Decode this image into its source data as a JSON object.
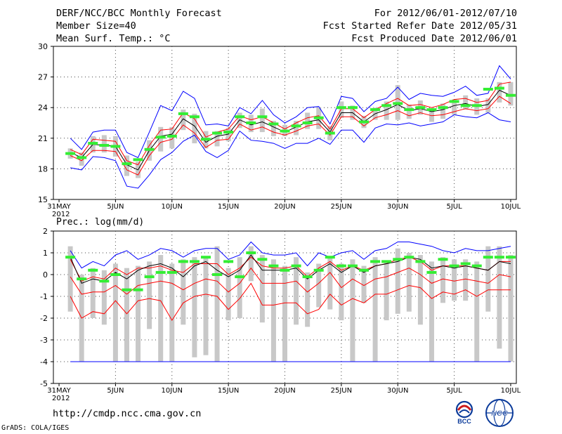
{
  "header": {
    "title": "DERF/NCC/BCC Monthly Forecast",
    "member_size": "Member Size=40",
    "variable": "Mean Surf. Temp.: °C",
    "forecast_period": "For 2012/06/01-2012/07/10",
    "start_refer": "Fcst Started Refer Date 2012/05/31",
    "produced": "Fcst Produced Date 2012/06/01"
  },
  "footer": {
    "url": "http://cmdp.ncc.cma.gov.cn",
    "credit": "GrADS: COLA/IGES",
    "logo_bcc": "BCC",
    "logo_ncc": "NCC"
  },
  "colors": {
    "max_min": "#0000ff",
    "mean": "#000000",
    "spread": "#ff0000",
    "box": "#c8c8c8",
    "median": "#33ee33"
  },
  "chart_data": [
    {
      "type": "line",
      "title": "Mean Surf. Temp.: °C",
      "ylim": [
        15,
        30
      ],
      "yticks": [
        15,
        18,
        21,
        24,
        27,
        30
      ],
      "xticks": [
        {
          "day": 0,
          "label": "31MAY",
          "label2": "2012"
        },
        {
          "day": 5,
          "label": "5JUN"
        },
        {
          "day": 10,
          "label": "10JUN"
        },
        {
          "day": 15,
          "label": "15JUN"
        },
        {
          "day": 20,
          "label": "20JUN"
        },
        {
          "day": 25,
          "label": "25JUN"
        },
        {
          "day": 30,
          "label": "30JUN"
        },
        {
          "day": 35,
          "label": "5JUL"
        },
        {
          "day": 40,
          "label": "10JUL"
        }
      ],
      "x": [
        1,
        2,
        3,
        4,
        5,
        6,
        7,
        8,
        9,
        10,
        11,
        12,
        13,
        14,
        15,
        16,
        17,
        18,
        19,
        20,
        21,
        22,
        23,
        24,
        25,
        26,
        27,
        28,
        29,
        30,
        31,
        32,
        33,
        34,
        35,
        36,
        37,
        38,
        39,
        40
      ],
      "series": [
        {
          "name": "max",
          "values": [
            21.0,
            19.9,
            21.6,
            21.8,
            21.8,
            19.6,
            19.1,
            21.6,
            24.2,
            23.7,
            25.6,
            24.9,
            22.3,
            22.4,
            22.2,
            24.0,
            23.4,
            24.7,
            23.3,
            22.5,
            23.1,
            24.0,
            24.1,
            22.4,
            25.1,
            24.9,
            23.6,
            24.6,
            24.9,
            26.0,
            24.8,
            25.4,
            25.2,
            25.1,
            25.5,
            26.1,
            25.2,
            25.4,
            28.1,
            26.8
          ]
        },
        {
          "name": "min",
          "values": [
            18.1,
            17.9,
            19.2,
            19.1,
            18.8,
            16.3,
            16.1,
            17.4,
            18.9,
            19.6,
            20.7,
            21.3,
            19.7,
            19.1,
            19.8,
            21.7,
            20.8,
            20.7,
            20.5,
            20.0,
            20.5,
            20.5,
            21.0,
            20.4,
            21.8,
            21.8,
            20.6,
            22.0,
            22.4,
            22.3,
            22.5,
            22.2,
            22.4,
            22.6,
            23.3,
            23.1,
            23.0,
            23.5,
            22.8,
            22.6
          ]
        },
        {
          "name": "mean",
          "values": [
            19.6,
            19.1,
            20.4,
            20.3,
            20.2,
            18.4,
            17.9,
            19.8,
            21.2,
            21.4,
            22.9,
            22.2,
            20.6,
            21.2,
            21.4,
            22.8,
            22.3,
            22.6,
            22.1,
            21.6,
            22.1,
            22.6,
            22.8,
            21.6,
            23.5,
            23.5,
            22.6,
            23.4,
            23.8,
            24.3,
            23.7,
            23.9,
            23.6,
            23.8,
            24.2,
            24.4,
            24.1,
            24.3,
            25.7,
            25.2
          ]
        },
        {
          "name": "mean_plus_sd",
          "values": [
            19.9,
            19.4,
            20.9,
            20.8,
            20.7,
            18.8,
            18.4,
            20.3,
            21.8,
            21.9,
            23.5,
            22.9,
            21.1,
            21.6,
            21.9,
            23.2,
            22.8,
            23.1,
            22.5,
            21.9,
            22.5,
            23.0,
            23.2,
            21.9,
            23.9,
            23.9,
            23.0,
            23.8,
            24.4,
            24.9,
            24.2,
            24.3,
            24.0,
            24.3,
            24.8,
            24.9,
            24.5,
            24.7,
            26.3,
            26.5
          ]
        },
        {
          "name": "mean_minus_sd",
          "values": [
            19.3,
            18.8,
            19.8,
            19.8,
            19.7,
            17.9,
            17.4,
            19.3,
            20.6,
            20.9,
            22.3,
            21.5,
            20.1,
            20.8,
            20.9,
            22.4,
            21.8,
            22.1,
            21.6,
            21.3,
            21.7,
            22.2,
            22.4,
            21.3,
            23.1,
            23.1,
            22.2,
            23.0,
            23.3,
            23.7,
            23.2,
            23.5,
            23.2,
            23.3,
            23.6,
            23.9,
            23.7,
            23.9,
            25.1,
            24.4
          ]
        },
        {
          "name": "box_top",
          "values": [
            20.0,
            19.6,
            21.2,
            21.3,
            21.2,
            19.3,
            18.7,
            20.8,
            22.1,
            22.1,
            23.8,
            23.4,
            21.7,
            21.7,
            22.0,
            23.5,
            23.3,
            23.9,
            22.7,
            22.3,
            22.7,
            23.5,
            24.0,
            22.2,
            24.6,
            24.2,
            23.2,
            24.0,
            24.6,
            26.2,
            24.3,
            24.7,
            23.7,
            24.4,
            24.8,
            25.2,
            24.9,
            24.9,
            26.5,
            26.5
          ]
        },
        {
          "name": "box_bottom",
          "values": [
            19.0,
            18.3,
            19.6,
            19.6,
            19.2,
            17.3,
            17.1,
            18.8,
            19.7,
            20.0,
            21.8,
            20.5,
            20.0,
            20.2,
            20.7,
            22.0,
            21.6,
            21.6,
            21.2,
            21.2,
            21.3,
            21.9,
            21.9,
            20.8,
            23.0,
            22.8,
            22.0,
            22.8,
            22.8,
            22.8,
            22.9,
            23.3,
            22.6,
            22.9,
            23.3,
            23.8,
            23.3,
            23.5,
            24.5,
            24.2
          ]
        },
        {
          "name": "median",
          "values": [
            19.5,
            19.1,
            20.5,
            20.3,
            20.2,
            18.5,
            18.9,
            19.9,
            21.1,
            21.2,
            23.4,
            23.1,
            20.9,
            21.5,
            21.6,
            23.1,
            22.5,
            23.1,
            22.4,
            21.7,
            22.2,
            22.5,
            23.0,
            21.5,
            24.0,
            24.0,
            22.6,
            23.8,
            24.2,
            24.4,
            23.8,
            24.0,
            23.8,
            24.0,
            24.6,
            24.2,
            24.2,
            25.8,
            25.9,
            25.2
          ]
        }
      ]
    },
    {
      "type": "line",
      "title": "Prec.: log(mm/d)",
      "ylim": [
        -5,
        2
      ],
      "yticks": [
        -5,
        -4,
        -3,
        -2,
        -1,
        0,
        1,
        2
      ],
      "xticks": [
        {
          "day": 0,
          "label": "31MAY",
          "label2": "2012"
        },
        {
          "day": 5,
          "label": "5JUN"
        },
        {
          "day": 10,
          "label": "10JUN"
        },
        {
          "day": 15,
          "label": "15JUN"
        },
        {
          "day": 20,
          "label": "20JUN"
        },
        {
          "day": 25,
          "label": "25JUN"
        },
        {
          "day": 30,
          "label": "30JUN"
        },
        {
          "day": 35,
          "label": "5JUL"
        },
        {
          "day": 40,
          "label": "10JUL"
        }
      ],
      "x": [
        1,
        2,
        3,
        4,
        5,
        6,
        7,
        8,
        9,
        10,
        11,
        12,
        13,
        14,
        15,
        16,
        17,
        18,
        19,
        20,
        21,
        22,
        23,
        24,
        25,
        26,
        27,
        28,
        29,
        30,
        31,
        32,
        33,
        34,
        35,
        36,
        37,
        38,
        39,
        40
      ],
      "series": [
        {
          "name": "max",
          "values": [
            1.1,
            0.3,
            0.6,
            0.4,
            0.9,
            1.1,
            0.7,
            0.9,
            1.2,
            1.1,
            0.8,
            1.1,
            1.2,
            1.2,
            0.7,
            0.9,
            1.5,
            1.0,
            0.9,
            0.9,
            1.0,
            0.4,
            1.0,
            0.8,
            1.0,
            1.1,
            0.7,
            1.1,
            1.2,
            1.5,
            1.5,
            1.4,
            1.3,
            1.1,
            1.0,
            1.2,
            1.1,
            1.1,
            1.2,
            1.3
          ]
        },
        {
          "name": "min",
          "values": [
            -4.0,
            -4.0,
            -4.0,
            -4.0,
            -4.0,
            -4.0,
            -4.0,
            -4.0,
            -4.0,
            -4.0,
            -4.0,
            -4.0,
            -4.0,
            -4.0,
            -4.0,
            -4.0,
            -4.0,
            -4.0,
            -4.0,
            -4.0,
            -4.0,
            -4.0,
            -4.0,
            -4.0,
            -4.0,
            -4.0,
            -4.0,
            -4.0,
            -4.0,
            -4.0,
            -4.0,
            -4.0,
            -4.0,
            -4.0,
            -4.0,
            -4.0,
            -4.0,
            -4.0,
            -4.0,
            -4.0
          ]
        },
        {
          "name": "mean",
          "values": [
            0.8,
            -0.4,
            -0.2,
            -0.3,
            0.1,
            -0.2,
            0.2,
            0.4,
            0.5,
            0.3,
            -0.1,
            0.4,
            0.6,
            0.2,
            -0.1,
            0.2,
            0.9,
            0.2,
            0.2,
            0.2,
            0.3,
            -0.2,
            0.2,
            0.5,
            0.1,
            0.4,
            0.1,
            0.4,
            0.5,
            0.6,
            0.8,
            0.7,
            0.3,
            0.4,
            0.3,
            0.4,
            0.3,
            0.2,
            0.6,
            0.5
          ]
        },
        {
          "name": "mean_plus_sd",
          "values": [
            0.7,
            -0.3,
            -0.1,
            -0.2,
            0.3,
            0.0,
            0.3,
            0.3,
            0.4,
            0.2,
            0.1,
            0.5,
            0.5,
            0.5,
            0.0,
            0.3,
            0.8,
            0.4,
            0.3,
            0.3,
            0.4,
            -0.1,
            0.3,
            0.6,
            0.2,
            0.4,
            0.2,
            0.4,
            0.5,
            0.7,
            0.8,
            0.6,
            0.2,
            0.4,
            0.4,
            0.4,
            0.3,
            0.2,
            0.6,
            0.6
          ]
        },
        {
          "name": "mean_minus_sd",
          "values": [
            -0.1,
            -0.9,
            -0.8,
            -0.8,
            -0.5,
            -0.9,
            -0.5,
            -0.4,
            -0.3,
            -0.4,
            -0.7,
            -0.4,
            -0.2,
            -0.3,
            -0.8,
            -0.4,
            0.3,
            -0.4,
            -0.4,
            -0.4,
            -0.3,
            -0.8,
            -0.4,
            0.1,
            -0.6,
            -0.2,
            -0.5,
            -0.2,
            -0.1,
            0.1,
            0.3,
            0.0,
            -0.4,
            -0.2,
            -0.3,
            -0.2,
            -0.3,
            -0.4,
            0.0,
            -0.1
          ]
        },
        {
          "name": "lower_spread",
          "values": [
            -1.0,
            -2.0,
            -1.7,
            -1.8,
            -1.2,
            -1.8,
            -1.2,
            -1.1,
            -1.2,
            -2.1,
            -1.3,
            -1.0,
            -0.9,
            -1.0,
            -1.6,
            -1.1,
            -0.4,
            -1.4,
            -1.4,
            -1.3,
            -1.3,
            -1.8,
            -1.6,
            -0.9,
            -1.4,
            -1.1,
            -1.3,
            -0.9,
            -0.9,
            -0.7,
            -0.5,
            -0.6,
            -1.1,
            -0.8,
            -0.9,
            -0.7,
            -1.0,
            -0.7,
            -0.7,
            -0.7
          ]
        },
        {
          "name": "box_top",
          "values": [
            1.3,
            0.0,
            0.3,
            0.2,
            0.5,
            0.3,
            0.4,
            0.6,
            0.9,
            0.5,
            0.7,
            0.8,
            0.8,
            1.3,
            0.3,
            0.8,
            1.3,
            0.9,
            0.7,
            0.4,
            0.8,
            0.1,
            0.5,
            0.8,
            0.5,
            0.7,
            0.4,
            0.8,
            0.6,
            1.2,
            1.0,
            0.9,
            0.6,
            0.8,
            0.7,
            0.7,
            0.6,
            1.3,
            1.3,
            0.9
          ]
        },
        {
          "name": "box_bottom",
          "values": [
            -1.7,
            -4.0,
            -2.0,
            -2.3,
            -4.0,
            -4.0,
            -4.0,
            -2.5,
            -4.0,
            -4.0,
            -2.3,
            -3.8,
            -3.7,
            -4.0,
            -2.1,
            -2.0,
            -0.3,
            -2.2,
            -4.0,
            -4.0,
            -2.3,
            -2.4,
            -1.5,
            -1.6,
            -2.1,
            -4.0,
            -1.3,
            -4.0,
            -2.1,
            -1.8,
            -1.7,
            -2.3,
            -4.0,
            -1.3,
            -1.2,
            -1.2,
            -4.0,
            -1.7,
            -3.4,
            -4.0
          ]
        },
        {
          "name": "median",
          "values": [
            0.8,
            -0.2,
            0.2,
            -0.3,
            0.0,
            -0.7,
            -0.7,
            -0.1,
            0.1,
            0.1,
            0.6,
            0.6,
            0.8,
            0.0,
            0.6,
            -0.1,
            1.0,
            0.7,
            0.4,
            0.2,
            0.4,
            -0.1,
            0.2,
            0.8,
            0.4,
            0.4,
            0.2,
            0.6,
            0.6,
            0.7,
            0.8,
            0.6,
            0.1,
            0.7,
            0.4,
            0.5,
            0.4,
            0.8,
            0.8,
            0.8
          ]
        }
      ]
    }
  ]
}
